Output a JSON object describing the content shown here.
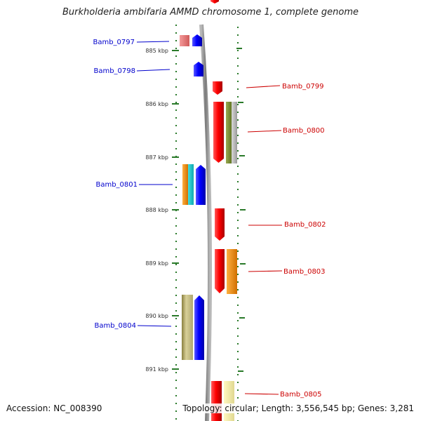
{
  "title": "Burkholderia ambifaria AMMD chromosome 1, complete genome",
  "accession": "Accession: NC_008390",
  "topology": "Topology: circular; Length: 3,556,545 bp; Genes: 3,281",
  "ticks": [
    "885 kbp",
    "886 kbp",
    "887 kbp",
    "888 kbp",
    "889 kbp",
    "890 kbp",
    "891 kbp"
  ],
  "labels": {
    "left": [
      "Bamb_0797",
      "Bamb_0798",
      "Bamb_0801",
      "Bamb_0804"
    ],
    "right": [
      "Bamb_0799",
      "Bamb_0800",
      "Bamb_0802",
      "Bamb_0803",
      "Bamb_0805"
    ]
  },
  "colors": {
    "forward_gene": "#0000ff",
    "reverse_gene": "#ff0000",
    "backbone": "#888888",
    "ruler": "#2a7a2a",
    "left_label": "#0000cc",
    "right_label": "#cc0000"
  }
}
